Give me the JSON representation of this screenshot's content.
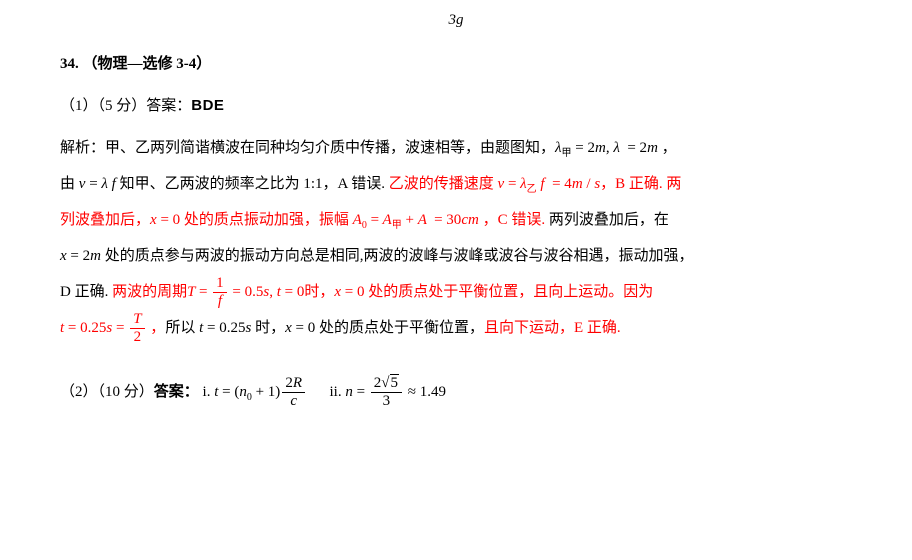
{
  "top_fragment": "3g",
  "title": "34. （物理—选修 3-4）",
  "part1": {
    "header": "（1）（5 分）答案：",
    "answer": "BDE"
  },
  "analysis": {
    "label": "解析：",
    "line1_a": "甲、乙两列简谐横波在同种均匀介质中传播，波速相等，由题图知，",
    "eq1": "λ_{甲} = 2m, λ = 2m ，",
    "line2_a": "由",
    "eq2": "v = λf",
    "line2_b": "知甲、乙两波的频率之比为 1:1，A 错误. ",
    "red1": "乙波的传播速度 ",
    "eq3": "v = λ_{乙} f = 4m/s",
    "red1b": "，B 正确. 两",
    "line3_a": "列波叠加后，x = 0 处的质点振动加强，振幅 ",
    "eq4": "A_{0} = A_{甲} + A = 30cm",
    "line3_b": " ，C 错误. ",
    "red2": "两列波叠加后，在",
    "red3": "x = 2m 处的质点参与两波的振动方向总是相同,两波的波峰与波峰或波谷与波谷相遇，振动加强，",
    "red4": "D 正确. ",
    "line4_a": "两波的周期",
    "eq5": "T = 1/f = 0.5s, t = 0",
    "line4_b": "时，x = 0 处的质点处于平衡位置，且向上运动。因为",
    "eq6": "t = 0.25s = T/2",
    "line5_a": "，所以",
    "eq7": "t = 0.25s",
    "line5_b": "时，x = 0 处的质点处于平衡位置，",
    "red5": "且向下运动，E 正确."
  },
  "part2": {
    "header": "（2）（10 分）",
    "answer_label": "答案：",
    "i_label": "i. ",
    "i_formula": "t = (n_{0} + 1) 2R/c",
    "ii_label": "ii. ",
    "ii_formula": "n = 2√5 / 3 ≈ 1.49"
  },
  "colors": {
    "text": "#000000",
    "highlight": "#ff0000",
    "background": "#ffffff"
  }
}
